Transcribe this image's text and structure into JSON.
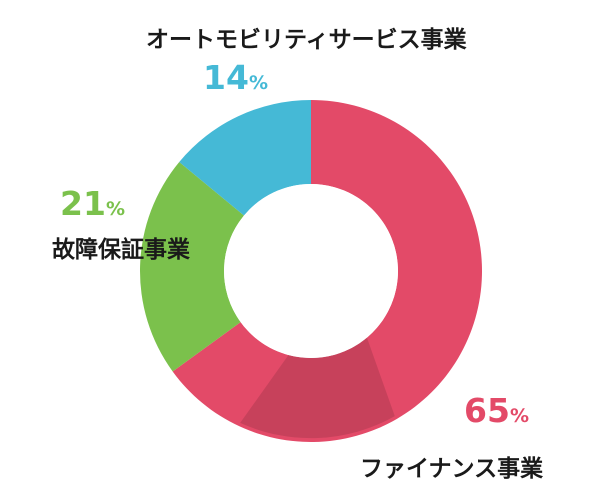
{
  "chart_data": {
    "type": "donut",
    "categories": [
      "ファイナンス事業",
      "故障保証事業",
      "オートモビリティサービス事業"
    ],
    "values": [
      65,
      21,
      14
    ],
    "unit": "%",
    "colors": [
      "#E34A68",
      "#7BC14C",
      "#45B9D6"
    ],
    "start_angle_deg": 0,
    "direction": "clockwise",
    "label_texts": [
      {
        "pct": "65",
        "name": "ファイナンス事業"
      },
      {
        "pct": "21",
        "name": "故障保証事業"
      },
      {
        "pct": "14",
        "name": "オートモビリティサービス事業"
      }
    ]
  }
}
